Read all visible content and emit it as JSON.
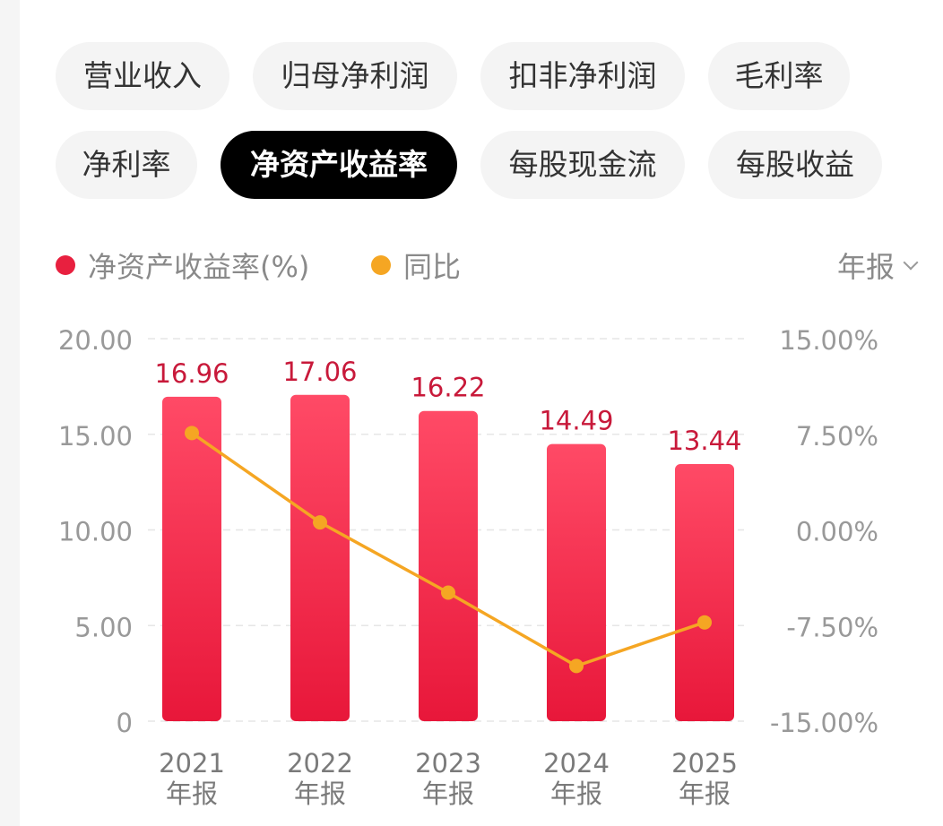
{
  "tabs": [
    {
      "label": "营业收入",
      "active": false
    },
    {
      "label": "归母净利润",
      "active": false
    },
    {
      "label": "扣非净利润",
      "active": false
    },
    {
      "label": "毛利率",
      "active": false
    },
    {
      "label": "净利率",
      "active": false
    },
    {
      "label": "净资产收益率",
      "active": true
    },
    {
      "label": "每股现金流",
      "active": false
    },
    {
      "label": "每股收益",
      "active": false
    }
  ],
  "legend": [
    {
      "label": "净资产收益率(%)",
      "color": "#e8203f"
    },
    {
      "label": "同比",
      "color": "#f5a623"
    }
  ],
  "period": {
    "label": "年报"
  },
  "chart_data": {
    "type": "bar",
    "categories": [
      {
        "year": "2021",
        "period": "年报"
      },
      {
        "year": "2022",
        "period": "年报"
      },
      {
        "year": "2023",
        "period": "年报"
      },
      {
        "year": "2024",
        "period": "年报"
      },
      {
        "year": "2025",
        "period": "年报"
      }
    ],
    "series": [
      {
        "name": "净资产收益率(%)",
        "type": "bar",
        "axis": "left",
        "values": [
          16.96,
          17.06,
          16.22,
          14.49,
          13.44
        ],
        "labels": [
          "16.96",
          "17.06",
          "16.22",
          "14.49",
          "13.44"
        ]
      },
      {
        "name": "同比",
        "type": "line",
        "axis": "right",
        "values": [
          7.6,
          0.59,
          -4.92,
          -10.67,
          -7.25
        ]
      }
    ],
    "left_axis": {
      "min": 0,
      "max": 20,
      "ticks": [
        "0",
        "5.00",
        "10.00",
        "15.00",
        "20.00"
      ]
    },
    "right_axis": {
      "min": -15,
      "max": 15,
      "ticks": [
        "-15.00%",
        "-7.50%",
        "0.00%",
        "7.50%",
        "15.00%"
      ]
    },
    "grid": true,
    "legend_position": "top-left",
    "colors": {
      "bar_top": "#ff4a66",
      "bar_bottom": "#e8173a",
      "line": "#f5a623",
      "value_label": "#c8193a",
      "axis_text": "#999999",
      "category_text": "#7a7a7a",
      "grid": "#e6e6e6"
    }
  }
}
